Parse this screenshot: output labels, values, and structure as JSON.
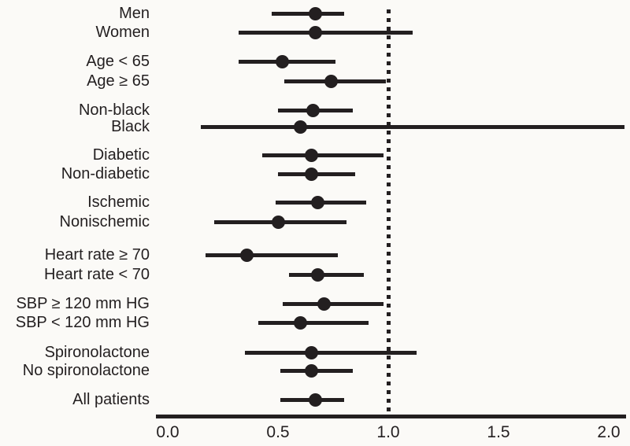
{
  "colors": {
    "ink": "#231f20",
    "background": "#fbfaf7"
  },
  "chart_data": {
    "type": "forest",
    "title": "",
    "xlabel": "",
    "ylabel": "",
    "x_axis": {
      "range": [
        0.0,
        2.0
      ],
      "ticks": [
        "0.0",
        "0.5",
        "1.0",
        "1.5",
        "2.0"
      ],
      "reference_line": 1.0,
      "reference_line_style": "dotted"
    },
    "groups": [
      {
        "name": "sex",
        "rows": [
          {
            "label": "Men",
            "estimate": 0.67,
            "ci_low": 0.47,
            "ci_high": 0.8
          },
          {
            "label": "Women",
            "estimate": 0.67,
            "ci_low": 0.32,
            "ci_high": 1.11
          }
        ]
      },
      {
        "name": "age",
        "rows": [
          {
            "label": "Age < 65",
            "estimate": 0.52,
            "ci_low": 0.32,
            "ci_high": 0.76
          },
          {
            "label": "Age ≥ 65",
            "estimate": 0.74,
            "ci_low": 0.53,
            "ci_high": 0.99
          }
        ]
      },
      {
        "name": "race",
        "rows": [
          {
            "label": "Non-black",
            "estimate": 0.66,
            "ci_low": 0.5,
            "ci_high": 0.84
          },
          {
            "label": "Black",
            "estimate": 0.6,
            "ci_low": 0.15,
            "ci_high": 2.07,
            "ci_clipped_at_axis": true
          }
        ]
      },
      {
        "name": "diabetes",
        "rows": [
          {
            "label": "Diabetic",
            "estimate": 0.65,
            "ci_low": 0.43,
            "ci_high": 0.98
          },
          {
            "label": "Non-diabetic",
            "estimate": 0.65,
            "ci_low": 0.5,
            "ci_high": 0.85
          }
        ]
      },
      {
        "name": "etiology",
        "rows": [
          {
            "label": "Ischemic",
            "estimate": 0.68,
            "ci_low": 0.49,
            "ci_high": 0.9
          },
          {
            "label": "Nonischemic",
            "estimate": 0.5,
            "ci_low": 0.21,
            "ci_high": 0.81
          }
        ]
      },
      {
        "name": "heart-rate",
        "rows": [
          {
            "label": "Heart rate ≥ 70",
            "estimate": 0.36,
            "ci_low": 0.17,
            "ci_high": 0.77
          },
          {
            "label": "Heart rate < 70",
            "estimate": 0.68,
            "ci_low": 0.55,
            "ci_high": 0.89
          }
        ]
      },
      {
        "name": "sbp",
        "rows": [
          {
            "label": "SBP ≥ 120 mm HG",
            "estimate": 0.71,
            "ci_low": 0.52,
            "ci_high": 0.98
          },
          {
            "label": "SBP < 120 mm HG",
            "estimate": 0.6,
            "ci_low": 0.41,
            "ci_high": 0.91
          }
        ]
      },
      {
        "name": "spironolactone",
        "rows": [
          {
            "label": "Spironolactone",
            "estimate": 0.65,
            "ci_low": 0.35,
            "ci_high": 1.13
          },
          {
            "label": "No spironolactone",
            "estimate": 0.65,
            "ci_low": 0.51,
            "ci_high": 0.84
          }
        ]
      },
      {
        "name": "overall",
        "rows": [
          {
            "label": "All patients",
            "estimate": 0.67,
            "ci_low": 0.51,
            "ci_high": 0.8
          }
        ]
      }
    ]
  }
}
